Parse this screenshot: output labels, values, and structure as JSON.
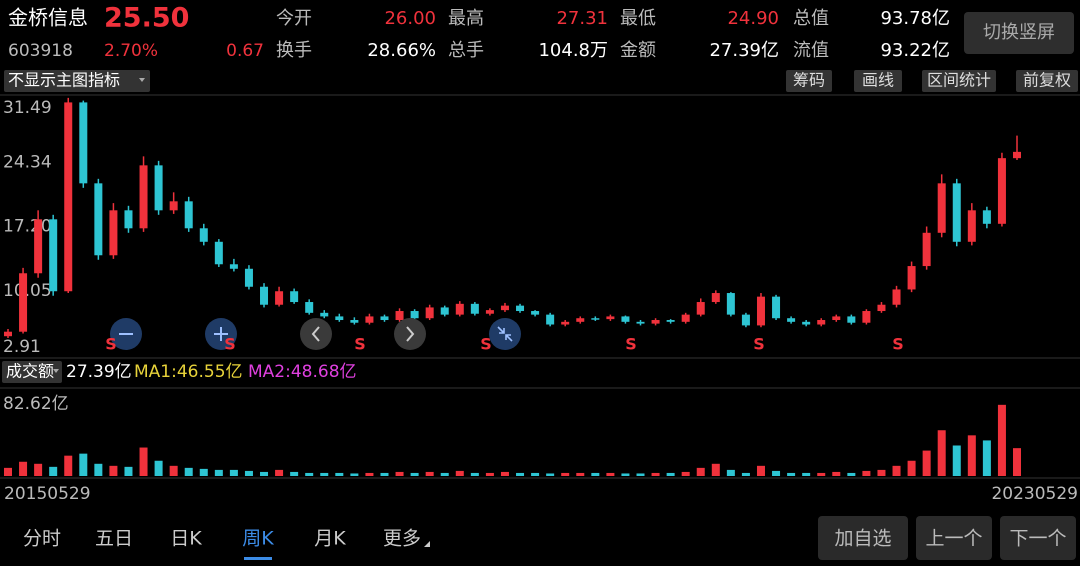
{
  "header": {
    "name": "金桥信息",
    "price": "25.50",
    "code": "603918",
    "change_pct": "2.70%",
    "change": "0.67",
    "fields": [
      {
        "label": "今开",
        "value": "26.00"
      },
      {
        "label": "最高",
        "value": "27.31"
      },
      {
        "label": "最低",
        "value": "24.90"
      },
      {
        "label": "总值",
        "value": "93.78亿"
      },
      {
        "label": "换手",
        "value": "28.66%"
      },
      {
        "label": "总手",
        "value": "104.8万"
      },
      {
        "label": "金额",
        "value": "27.39亿"
      },
      {
        "label": "流值",
        "value": "93.22亿"
      }
    ],
    "orientation_button": "切换竖屏"
  },
  "toolbar": {
    "indicator": "不显示主图指标",
    "buttons": [
      "筹码",
      "画线",
      "区间统计",
      "前复权"
    ]
  },
  "chart_data": [
    {
      "type": "candlestick",
      "open": [
        5.0,
        5.5,
        12,
        18,
        10,
        31,
        22,
        14,
        19,
        17,
        24,
        19,
        20,
        17,
        15.5,
        13,
        12.5,
        10.5,
        8.5,
        10,
        8.8,
        7.6,
        7.2,
        6.8,
        6.5,
        7.2,
        6.8,
        7.8,
        7.0,
        8.2,
        7.4,
        8.6,
        7.5,
        7.9,
        8.4,
        7.8,
        7.4,
        6.3,
        6.6,
        7.0,
        6.9,
        7.2,
        6.6,
        6.4,
        6.8,
        6.6,
        7.4,
        8.8,
        9.8,
        7.4,
        6.2,
        9.4,
        7.0,
        6.6,
        6.3,
        6.8,
        7.2,
        6.5,
        7.8,
        8.5,
        10.2,
        12.8,
        16.5,
        22,
        15.5,
        19,
        17.5,
        24.8
      ],
      "high": [
        5.8,
        12.6,
        19,
        18.5,
        31.5,
        31.2,
        22.5,
        19.8,
        19.5,
        25,
        24.5,
        21,
        20.5,
        17.5,
        15.8,
        13.6,
        12.9,
        10.9,
        10.5,
        10.3,
        9.1,
        7.9,
        7.5,
        7.1,
        7.5,
        7.4,
        8.1,
        8.0,
        8.5,
        8.4,
        8.9,
        8.8,
        8.1,
        8.7,
        8.6,
        7.9,
        7.6,
        6.8,
        7.2,
        7.2,
        7.4,
        7.3,
        6.8,
        7.0,
        6.9,
        7.6,
        9.2,
        10.1,
        9.9,
        7.6,
        9.8,
        9.6,
        7.2,
        6.8,
        7.0,
        7.4,
        7.4,
        8.0,
        8.8,
        10.6,
        13.3,
        17.2,
        23,
        22.5,
        19.8,
        19.4,
        25.4,
        27.31
      ],
      "low": [
        4.8,
        5.3,
        11.5,
        9.5,
        9.8,
        21.5,
        13.5,
        13.6,
        16.5,
        16.6,
        18.5,
        18.6,
        16.6,
        15.1,
        12.7,
        12.2,
        10.2,
        8.2,
        8.3,
        8.6,
        7.4,
        7.0,
        6.6,
        6.3,
        6.3,
        6.6,
        6.6,
        6.8,
        6.8,
        7.2,
        7.2,
        7.3,
        7.3,
        7.7,
        7.6,
        7.2,
        6.1,
        6.1,
        6.4,
        6.7,
        6.7,
        6.4,
        6.2,
        6.2,
        6.4,
        6.4,
        7.2,
        8.6,
        7.2,
        6.0,
        6.0,
        6.8,
        6.4,
        6.1,
        6.1,
        6.6,
        6.3,
        6.3,
        7.6,
        8.2,
        9.9,
        12.4,
        16.0,
        15.0,
        15.1,
        17.0,
        17.2,
        24.6
      ],
      "close": [
        5.5,
        12,
        18,
        10,
        31,
        22,
        14,
        19,
        17,
        24,
        19,
        20,
        17,
        15.5,
        13,
        12.5,
        10.5,
        8.5,
        10,
        8.8,
        7.6,
        7.2,
        6.8,
        6.5,
        7.2,
        6.8,
        7.8,
        7.0,
        8.2,
        7.4,
        8.6,
        7.5,
        7.9,
        8.4,
        7.8,
        7.4,
        6.3,
        6.6,
        7.0,
        6.9,
        7.2,
        6.6,
        6.4,
        6.8,
        6.6,
        7.4,
        8.8,
        9.8,
        7.4,
        6.2,
        9.4,
        7.0,
        6.6,
        6.3,
        6.8,
        7.2,
        6.5,
        7.8,
        8.5,
        10.2,
        12.8,
        16.5,
        22,
        15.5,
        19,
        17.5,
        24.8,
        25.5
      ],
      "ylim": [
        2.91,
        31.49
      ],
      "yticks": [
        31.49,
        24.34,
        {
          "value": 17.2,
          "label": "17.20"
        },
        10.05,
        2.91
      ],
      "up_color": "#f0323c",
      "down_color": "#2ec5d3",
      "signals": [
        "S",
        "S",
        "S",
        "S",
        "S",
        "S",
        "S"
      ],
      "dates": [
        "20150529",
        "20230529"
      ]
    },
    {
      "type": "bar",
      "label": "成交额",
      "value": "27.39亿",
      "ma1": "MA1:46.55亿",
      "ma2": "MA2:48.68亿",
      "values": [
        8,
        14,
        12,
        9,
        20,
        22,
        12,
        10,
        9,
        28,
        15,
        10,
        8,
        7,
        6,
        6,
        5,
        4,
        6,
        4,
        3,
        3,
        3,
        2.5,
        3,
        3,
        4,
        3,
        4,
        3,
        5,
        3,
        3,
        4,
        3,
        3,
        2.5,
        3,
        3,
        3,
        3,
        2.5,
        2.5,
        3,
        3,
        4,
        8,
        12,
        6,
        3,
        10,
        5,
        3,
        3,
        3,
        4,
        3,
        5,
        6,
        10,
        15,
        25,
        45,
        30,
        40,
        35,
        70,
        27.39
      ],
      "ylim": [
        0,
        82.62
      ],
      "yticks": [
        {
          "value": 82.62,
          "label": "82.62亿"
        }
      ]
    }
  ],
  "tabs": [
    "分时",
    "五日",
    "日K",
    "周K",
    "月K",
    "更多"
  ],
  "active_tab": 3,
  "actions": [
    "加自选",
    "上一个",
    "下一个"
  ]
}
